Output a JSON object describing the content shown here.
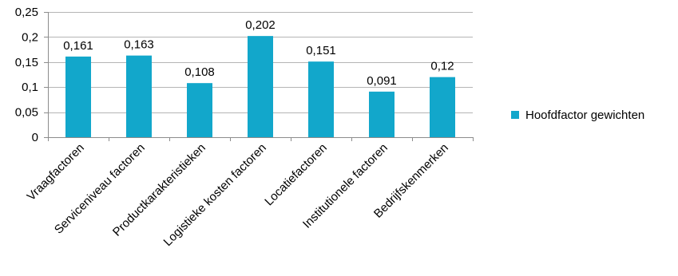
{
  "chart_data": {
    "type": "bar",
    "categories": [
      "Vraagfactoren",
      "Serviceniveau factoren",
      "Productkarakteristieken",
      "Logistieke kosten factoren",
      "Locatiefactoren",
      "Institutionele factoren",
      "Bedrijfskenmerken"
    ],
    "series": [
      {
        "name": "Hoofdfactor gewichten",
        "values": [
          0.161,
          0.163,
          0.108,
          0.202,
          0.151,
          0.091,
          0.12
        ],
        "data_labels": [
          "0,161",
          "0,163",
          "0,108",
          "0,202",
          "0,151",
          "0,091",
          "0,12"
        ],
        "color": "#12A7CB"
      }
    ],
    "y_ticks": [
      0,
      0.05,
      0.1,
      0.15,
      0.2,
      0.25
    ],
    "y_tick_labels": [
      "0",
      "0,05",
      "0,1",
      "0,15",
      "0,2",
      "0,25"
    ],
    "ylim": [
      0,
      0.25
    ],
    "grid": true,
    "legend_position": "right",
    "title": "",
    "xlabel": "",
    "ylabel": ""
  }
}
